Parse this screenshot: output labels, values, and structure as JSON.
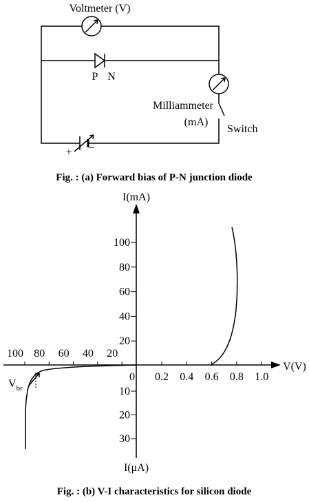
{
  "circuit": {
    "voltmeter_label": "Voltmeter (V)",
    "p_label": "P",
    "n_label": "N",
    "milliammeter_label": "Milliammeter",
    "milliammeter_unit": "(mA)",
    "switch_label": "Switch",
    "plus": "+",
    "minus": "−",
    "caption": "Fig. : (a) Forward bias of P-N junction diode"
  },
  "graph": {
    "y_axis_label": "I(mA)",
    "y_negative_label": "I(μA)",
    "x_axis_label": "V(V)",
    "origin_label": "0",
    "forward_voltage_ticks": [
      "0.2",
      "0.4",
      "0.6",
      "0.8",
      "1.0"
    ],
    "reverse_voltage_ticks": [
      "100",
      "80",
      "60",
      "40",
      "20"
    ],
    "forward_current_ticks": [
      "100",
      "80",
      "60",
      "40",
      "20"
    ],
    "reverse_current_ticks": [
      "10",
      "20",
      "30"
    ],
    "breakdown_label": "V",
    "breakdown_subscript": "br",
    "caption": "Fig. : (b) V-I characteristics for silicon diode"
  }
}
